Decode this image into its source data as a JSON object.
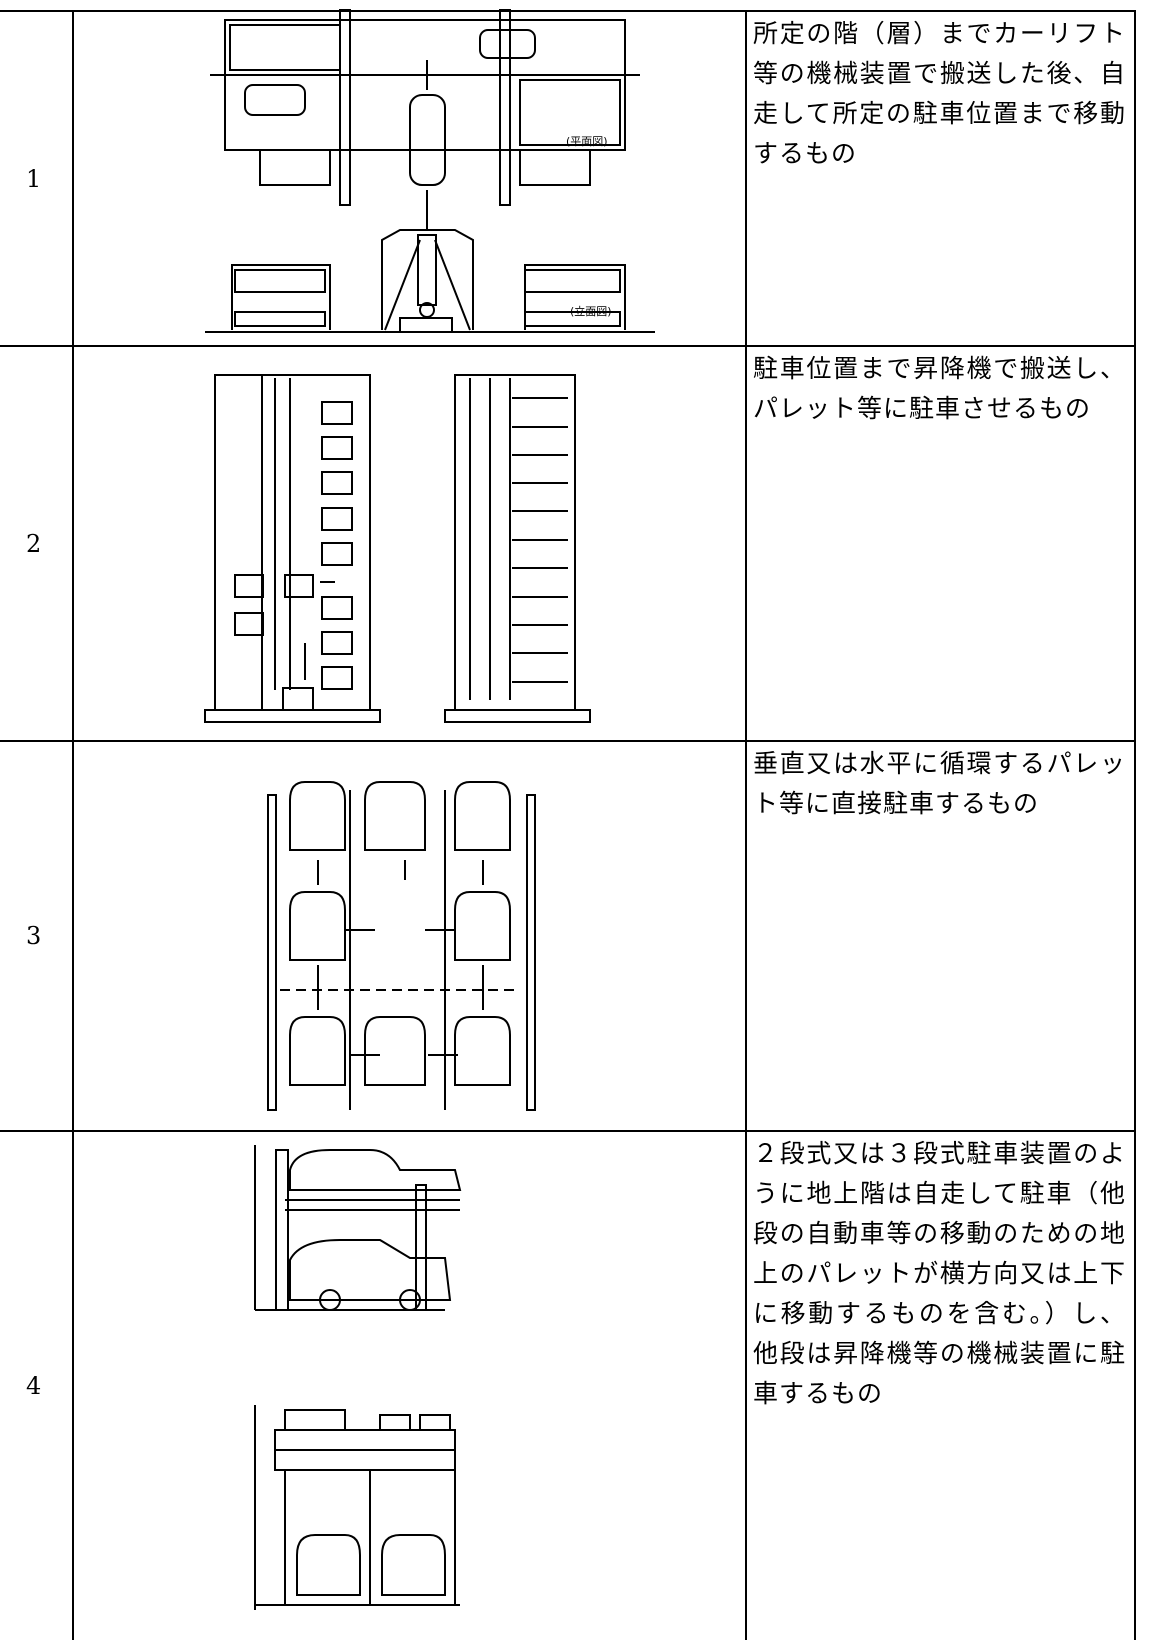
{
  "table": {
    "rows": [
      {
        "number": "1",
        "description": "所定の階（層）までカーリフト等の機械装置で搬送した後、自走して所定の駐車位置まで移動するもの",
        "labels": [
          "(平面図)",
          "(立面図)"
        ]
      },
      {
        "number": "2",
        "description": "駐車位置まで昇降機で搬送し、パレット等に駐車させるもの"
      },
      {
        "number": "3",
        "description": "垂直又は水平に循環するパレット等に直接駐車するもの"
      },
      {
        "number": "4",
        "description": "２段式又は３段式駐車装置のように地上階は自走して駐車（他段の自動車等の移動のための地上のパレットが横方向又は上下に移動するものを含む。）し、他段は昇降機等の機械装置に駐車するもの"
      }
    ]
  }
}
